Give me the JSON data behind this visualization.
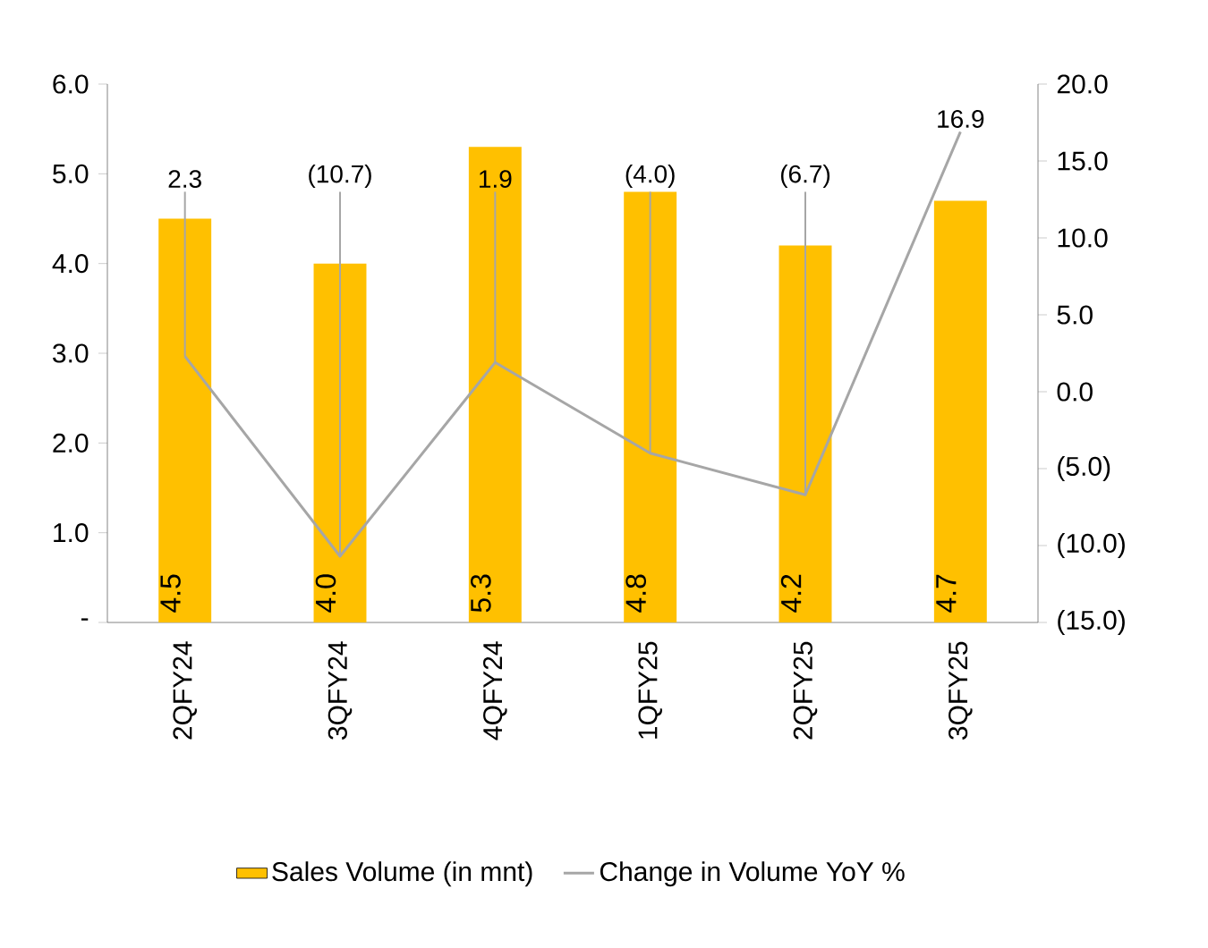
{
  "chart_data": {
    "type": "bar",
    "categories": [
      "2QFY24",
      "3QFY24",
      "4QFY24",
      "1QFY25",
      "2QFY25",
      "3QFY25"
    ],
    "series": [
      {
        "name": "Sales Volume (in mnt)",
        "color": "#ffc000",
        "values": [
          4.5,
          4.0,
          5.3,
          4.8,
          4.2,
          4.7
        ],
        "value_labels": [
          "4.5",
          "4.0",
          "5.3",
          "4.8",
          "4.2",
          "4.7"
        ]
      },
      {
        "name": "Change in Volume YoY %",
        "type": "line",
        "axis": "y2",
        "color": "#a6a6a6",
        "values": [
          2.3,
          -10.7,
          1.9,
          -4.0,
          -6.7,
          16.9
        ],
        "value_labels": [
          "2.3",
          "(10.7)",
          "1.9",
          "(4.0)",
          "(6.7)",
          "16.9"
        ]
      }
    ],
    "ylim": [
      0,
      6
    ],
    "yticks": [
      {
        "value": 0,
        "label": "-"
      },
      {
        "value": 1,
        "label": "1.0"
      },
      {
        "value": 2,
        "label": "2.0"
      },
      {
        "value": 3,
        "label": "3.0"
      },
      {
        "value": 4,
        "label": "4.0"
      },
      {
        "value": 5,
        "label": "5.0"
      },
      {
        "value": 6,
        "label": "6.0"
      }
    ],
    "y2lim": [
      -15,
      20
    ],
    "y2ticks": [
      {
        "value": -15,
        "label": "(15.0)"
      },
      {
        "value": -10,
        "label": "(10.0)"
      },
      {
        "value": -5,
        "label": "(5.0)"
      },
      {
        "value": 0,
        "label": "0.0"
      },
      {
        "value": 5,
        "label": "5.0"
      },
      {
        "value": 10,
        "label": "10.0"
      },
      {
        "value": 15,
        "label": "15.0"
      },
      {
        "value": 20,
        "label": "20.0"
      }
    ],
    "legend": "bottom"
  }
}
